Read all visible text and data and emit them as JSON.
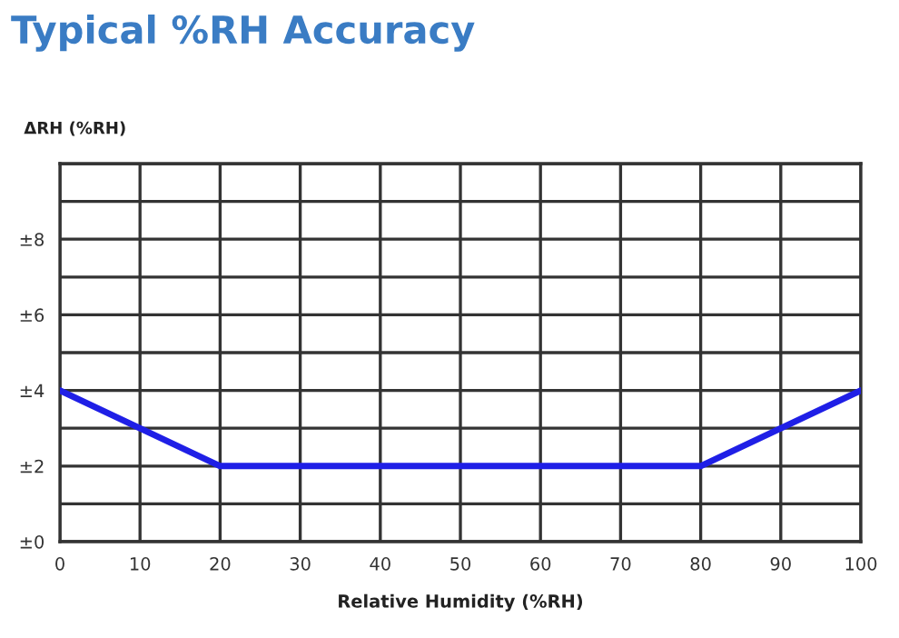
{
  "chart_data": {
    "type": "line",
    "title": "Typical %RH Accuracy",
    "xlabel": "Relative Humidity (%RH)",
    "ylabel": "ΔRH (%RH)",
    "x": [
      0,
      20,
      80,
      100
    ],
    "series": [
      {
        "color": "#1f1fe6",
        "values": [
          4,
          2,
          2,
          4
        ]
      }
    ],
    "xlim": [
      0,
      100
    ],
    "xticks": [
      0,
      10,
      20,
      30,
      40,
      50,
      60,
      70,
      80,
      90,
      100
    ],
    "ylim": [
      0,
      10
    ],
    "yticks": [
      {
        "value": 0,
        "label": "±0"
      },
      {
        "value": 1,
        "label": null
      },
      {
        "value": 2,
        "label": "±2"
      },
      {
        "value": 3,
        "label": null
      },
      {
        "value": 4,
        "label": "±4"
      },
      {
        "value": 5,
        "label": null
      },
      {
        "value": 6,
        "label": "±6"
      },
      {
        "value": 7,
        "label": null
      },
      {
        "value": 8,
        "label": "±8"
      },
      {
        "value": 9,
        "label": null
      },
      {
        "value": 10,
        "label": null
      }
    ],
    "grid": true,
    "legend": false,
    "marker": "none",
    "line_style": "solid"
  }
}
